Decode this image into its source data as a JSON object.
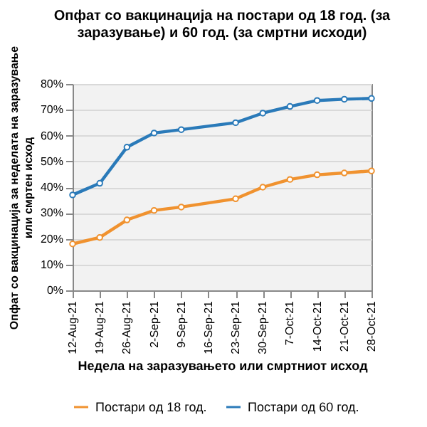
{
  "chart_data": {
    "type": "line",
    "title": "Опфат со вакцинација на постари од 18 год. (за заразување) и 60 год. (за смртни исходи)",
    "xlabel": "Недела на заразувањето или смртниот  исход",
    "ylabel": "Опфат со вакцинација за неделата на заразување или смртен исход",
    "categories": [
      "12-Aug-21",
      "19-Aug-21",
      "26-Aug-21",
      "2-Sep-21",
      "9-Sep-21",
      "16-Sep-21",
      "23-Sep-21",
      "30-Sep-21",
      "7-Oct-21",
      "14-Oct-21",
      "21-Oct-21",
      "28-Oct-21"
    ],
    "series": [
      {
        "name": "Постари од 18 год.",
        "color": "#f0922f",
        "values": [
          18,
          20.5,
          27.3,
          31,
          32.3,
          null,
          35.5,
          40,
          43,
          44.8,
          45.5,
          46.3
        ]
      },
      {
        "name": "Постари од 60 год.",
        "color": "#2a7ab9",
        "values": [
          37,
          41.5,
          55.5,
          61,
          62.3,
          null,
          65,
          68.7,
          71.3,
          73.6,
          74.1,
          74.4
        ]
      }
    ],
    "ylim": [
      0,
      80
    ],
    "yticks": [
      {
        "value": 0,
        "label": "0%"
      },
      {
        "value": 10,
        "label": "10%"
      },
      {
        "value": 20,
        "label": "20%"
      },
      {
        "value": 30,
        "label": "30%"
      },
      {
        "value": 40,
        "label": "40%"
      },
      {
        "value": 50,
        "label": "50%"
      },
      {
        "value": 60,
        "label": "60%"
      },
      {
        "value": 70,
        "label": "70%"
      },
      {
        "value": 80,
        "label": "80%"
      }
    ],
    "grid": "y",
    "legend": "bottom",
    "marker": "circle",
    "line_style": "solid"
  }
}
